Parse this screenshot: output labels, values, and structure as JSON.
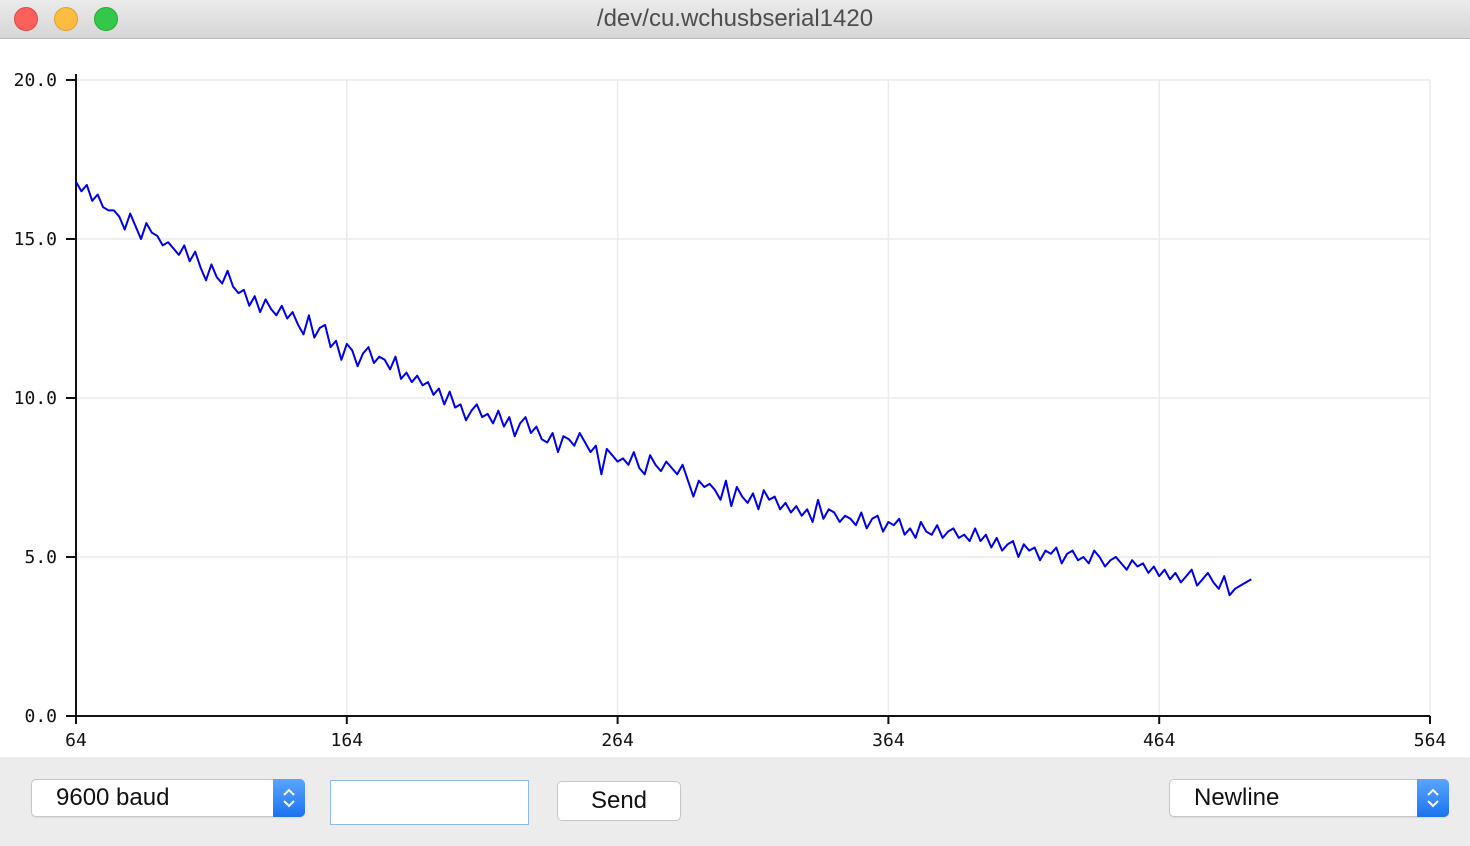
{
  "window": {
    "title": "/dev/cu.wchusbserial1420"
  },
  "controls": {
    "baud_label": "9600 baud",
    "input_value": "",
    "send_label": "Send",
    "line_ending_label": "Newline"
  },
  "colors": {
    "line": "#0000e6",
    "grid": "#ebebeb",
    "accent": "#1a73f0"
  },
  "chart_data": {
    "type": "line",
    "title": "",
    "xlabel": "",
    "ylabel": "",
    "xlim": [
      64,
      564
    ],
    "ylim": [
      0,
      20
    ],
    "x_ticks": [
      "64",
      "164",
      "264",
      "364",
      "464",
      "564"
    ],
    "y_ticks": [
      "0.0",
      "5.0",
      "10.0",
      "15.0",
      "20.0"
    ],
    "grid": true,
    "series": [
      {
        "x_start": 64,
        "x_step": 2,
        "values": [
          16.8,
          16.5,
          16.7,
          16.2,
          16.4,
          16.0,
          15.9,
          15.9,
          15.7,
          15.3,
          15.8,
          15.4,
          15.0,
          15.5,
          15.2,
          15.1,
          14.8,
          14.9,
          14.7,
          14.5,
          14.8,
          14.3,
          14.6,
          14.1,
          13.7,
          14.2,
          13.8,
          13.6,
          14.0,
          13.5,
          13.3,
          13.4,
          12.9,
          13.2,
          12.7,
          13.1,
          12.8,
          12.6,
          12.9,
          12.5,
          12.7,
          12.3,
          12.0,
          12.6,
          11.9,
          12.2,
          12.3,
          11.6,
          11.8,
          11.2,
          11.7,
          11.5,
          11.0,
          11.4,
          11.6,
          11.1,
          11.3,
          11.2,
          10.9,
          11.3,
          10.6,
          10.8,
          10.5,
          10.7,
          10.4,
          10.5,
          10.1,
          10.3,
          9.8,
          10.2,
          9.7,
          9.8,
          9.3,
          9.6,
          9.8,
          9.4,
          9.5,
          9.2,
          9.6,
          9.1,
          9.4,
          8.8,
          9.2,
          9.4,
          8.9,
          9.1,
          8.7,
          8.6,
          8.9,
          8.3,
          8.8,
          8.7,
          8.5,
          8.9,
          8.6,
          8.3,
          8.5,
          7.6,
          8.4,
          8.2,
          8.0,
          8.1,
          7.9,
          8.3,
          7.8,
          7.6,
          8.2,
          7.9,
          7.7,
          8.0,
          7.8,
          7.6,
          7.9,
          7.4,
          6.9,
          7.4,
          7.2,
          7.3,
          7.1,
          6.8,
          7.4,
          6.6,
          7.2,
          6.9,
          6.7,
          7.0,
          6.5,
          7.1,
          6.8,
          6.9,
          6.5,
          6.7,
          6.4,
          6.6,
          6.3,
          6.5,
          6.1,
          6.8,
          6.2,
          6.5,
          6.4,
          6.1,
          6.3,
          6.2,
          6.0,
          6.4,
          5.9,
          6.2,
          6.3,
          5.8,
          6.1,
          6.0,
          6.2,
          5.7,
          5.9,
          5.6,
          6.1,
          5.8,
          5.7,
          6.0,
          5.6,
          5.8,
          5.9,
          5.6,
          5.7,
          5.5,
          5.9,
          5.5,
          5.7,
          5.3,
          5.6,
          5.2,
          5.4,
          5.5,
          5.0,
          5.4,
          5.2,
          5.3,
          4.9,
          5.2,
          5.1,
          5.3,
          4.8,
          5.1,
          5.2,
          4.9,
          5.0,
          4.8,
          5.2,
          5.0,
          4.7,
          4.9,
          5.0,
          4.8,
          4.6,
          4.9,
          4.7,
          4.8,
          4.5,
          4.7,
          4.4,
          4.6,
          4.3,
          4.5,
          4.2,
          4.4,
          4.6,
          4.1,
          4.3,
          4.5,
          4.2,
          4.0,
          4.4,
          3.8,
          4.0,
          4.1,
          4.2,
          4.3
        ]
      }
    ]
  }
}
